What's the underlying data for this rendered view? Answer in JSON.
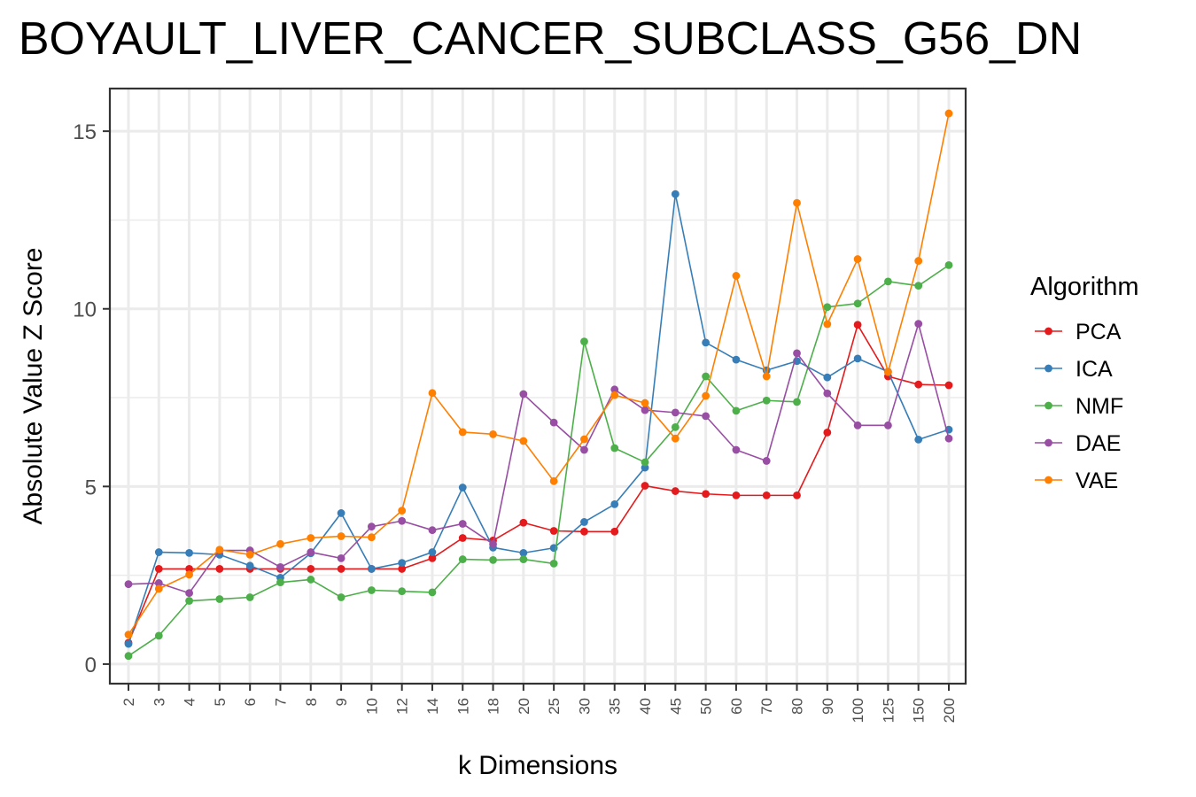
{
  "chart_data": {
    "type": "line",
    "title": "BOYAULT_LIVER_CANCER_SUBCLASS_G56_DN",
    "xlabel": "k Dimensions",
    "ylabel": "Absolute Value Z Score",
    "categories": [
      "2",
      "3",
      "4",
      "5",
      "6",
      "7",
      "8",
      "9",
      "10",
      "12",
      "14",
      "16",
      "18",
      "20",
      "25",
      "30",
      "35",
      "40",
      "45",
      "50",
      "60",
      "70",
      "80",
      "90",
      "100",
      "125",
      "150",
      "200"
    ],
    "ylim": [
      -0.55,
      16.2
    ],
    "y_ticks": [
      0,
      5,
      10,
      15
    ],
    "grid": true,
    "legend": {
      "title": "Algorithm",
      "position": "right"
    },
    "series": [
      {
        "name": "PCA",
        "color": "#e41a1c",
        "values": [
          0.6,
          2.68,
          2.68,
          2.68,
          2.68,
          2.68,
          2.68,
          2.68,
          2.68,
          2.68,
          2.98,
          3.55,
          3.48,
          3.98,
          3.75,
          3.73,
          3.73,
          5.02,
          4.87,
          4.79,
          4.75,
          4.75,
          4.75,
          6.52,
          9.55,
          8.1,
          7.87,
          7.85
        ]
      },
      {
        "name": "ICA",
        "color": "#377eb8",
        "values": [
          0.57,
          3.15,
          3.13,
          3.08,
          2.77,
          2.43,
          3.12,
          4.25,
          2.68,
          2.85,
          3.15,
          4.97,
          3.28,
          3.13,
          3.27,
          4.0,
          4.5,
          5.53,
          13.23,
          9.05,
          8.57,
          8.27,
          8.53,
          8.07,
          8.6,
          8.23,
          6.32,
          6.6
        ]
      },
      {
        "name": "NMF",
        "color": "#4daf4a",
        "values": [
          0.23,
          0.8,
          1.78,
          1.83,
          1.88,
          2.3,
          2.38,
          1.88,
          2.08,
          2.05,
          2.02,
          2.95,
          2.93,
          2.95,
          2.83,
          9.08,
          6.08,
          5.68,
          6.67,
          8.1,
          7.13,
          7.42,
          7.38,
          10.05,
          10.15,
          10.77,
          10.65,
          11.23
        ]
      },
      {
        "name": "DAE",
        "color": "#984ea3",
        "values": [
          2.25,
          2.28,
          2.0,
          3.2,
          3.2,
          2.73,
          3.15,
          2.98,
          3.87,
          4.03,
          3.77,
          3.95,
          3.38,
          7.6,
          6.8,
          6.03,
          7.73,
          7.15,
          7.08,
          6.98,
          6.03,
          5.72,
          8.75,
          7.62,
          6.72,
          6.72,
          9.58,
          6.35
        ]
      },
      {
        "name": "VAE",
        "color": "#ff7f00",
        "values": [
          0.83,
          2.12,
          2.52,
          3.22,
          3.08,
          3.38,
          3.55,
          3.6,
          3.57,
          4.32,
          7.63,
          6.53,
          6.47,
          6.28,
          5.15,
          6.33,
          7.57,
          7.35,
          6.35,
          7.55,
          10.93,
          8.1,
          12.98,
          9.57,
          11.4,
          8.22,
          11.35,
          15.5
        ]
      }
    ]
  }
}
